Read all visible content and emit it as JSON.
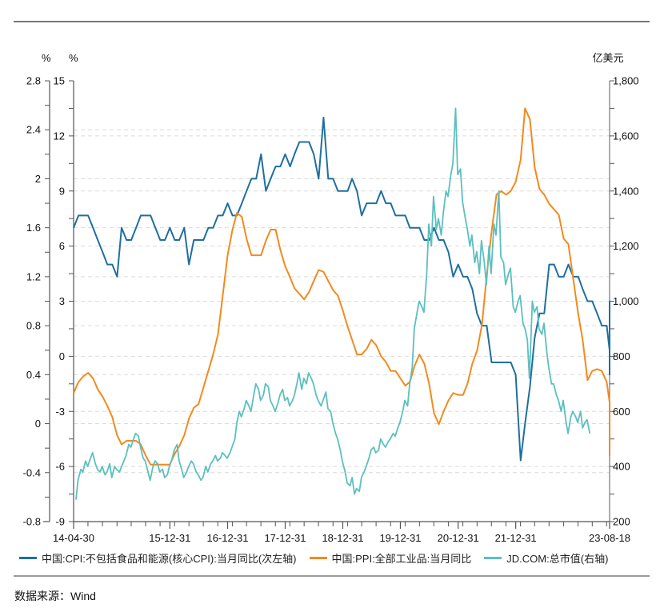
{
  "chart_data": {
    "type": "line",
    "title": "",
    "units": {
      "left_outer": "%",
      "left_inner": "%",
      "right": "亿美元"
    },
    "axes": {
      "left_outer": {
        "min": -0.8,
        "max": 2.8,
        "ticks": [
          "2.8",
          "2.4",
          "2",
          "1.6",
          "1.2",
          "0.8",
          "0.4",
          "0",
          "-0.4",
          "-0.8"
        ],
        "tick_values": [
          2.8,
          2.4,
          2.0,
          1.6,
          1.2,
          0.8,
          0.4,
          0,
          -0.4,
          -0.8
        ]
      },
      "left_inner": {
        "min": -9,
        "max": 15,
        "ticks": [
          "15",
          "12",
          "9",
          "6",
          "3",
          "0",
          "-3",
          "-6",
          "-9"
        ],
        "tick_values": [
          15,
          12,
          9,
          6,
          3,
          0,
          -3,
          -6,
          -9
        ]
      },
      "right": {
        "min": 200,
        "max": 1800,
        "ticks": [
          "1,800",
          "1,600",
          "1,400",
          "1,200",
          "1,000",
          "800",
          "600",
          "400",
          "200"
        ],
        "tick_values": [
          1800,
          1600,
          1400,
          1200,
          1000,
          800,
          600,
          400,
          200
        ]
      }
    },
    "x_range": [
      "2014-04-30",
      "2023-08-18"
    ],
    "x_ticks": [
      {
        "label": "14-04-30",
        "date": "2014-04-30"
      },
      {
        "label": "15-12-31",
        "date": "2015-12-31"
      },
      {
        "label": "16-12-31",
        "date": "2016-12-31"
      },
      {
        "label": "17-12-31",
        "date": "2017-12-31"
      },
      {
        "label": "18-12-31",
        "date": "2018-12-31"
      },
      {
        "label": "19-12-31",
        "date": "2019-12-31"
      },
      {
        "label": "20-12-31",
        "date": "2020-12-31"
      },
      {
        "label": "21-12-31",
        "date": "2021-12-31"
      },
      {
        "label": "23-08-18",
        "date": "2023-08-18"
      }
    ],
    "grid": true,
    "legend_position": "bottom",
    "series": [
      {
        "name": "中国:CPI:不包括食品和能源(核心CPI):当月同比(次左轴)",
        "axis": "left_outer",
        "color": "#1f6f9f",
        "start": "2014-04",
        "step": "month",
        "values": [
          1.6,
          1.7,
          1.7,
          1.7,
          1.6,
          1.5,
          1.4,
          1.3,
          1.3,
          1.2,
          1.6,
          1.5,
          1.5,
          1.6,
          1.7,
          1.7,
          1.7,
          1.6,
          1.5,
          1.5,
          1.6,
          1.5,
          1.5,
          1.6,
          1.3,
          1.5,
          1.5,
          1.5,
          1.6,
          1.6,
          1.7,
          1.7,
          1.8,
          1.7,
          1.7,
          1.8,
          1.9,
          2.0,
          2.0,
          2.2,
          1.9,
          2.0,
          2.1,
          2.1,
          2.2,
          2.1,
          2.2,
          2.3,
          2.3,
          2.3,
          2.2,
          2.0,
          2.5,
          2.0,
          2.0,
          1.9,
          1.9,
          1.9,
          2.0,
          1.9,
          1.7,
          1.8,
          1.8,
          1.8,
          1.9,
          1.8,
          1.8,
          1.7,
          1.7,
          1.7,
          1.6,
          1.6,
          1.6,
          1.5,
          1.5,
          1.6,
          1.5,
          1.5,
          1.4,
          1.2,
          1.3,
          1.2,
          1.2,
          1.1,
          0.9,
          0.8,
          0.8,
          0.5,
          0.5,
          0.5,
          0.5,
          0.5,
          0.4,
          -0.3,
          0.0,
          0.3,
          0.7,
          0.9,
          0.9,
          1.3,
          1.3,
          1.2,
          1.2,
          1.3,
          1.2,
          1.2,
          1.1,
          1.0,
          1.0,
          0.9,
          0.8,
          0.8,
          0.6,
          0.7,
          0.7,
          0.7,
          0.6,
          0.6,
          0.6,
          0.7,
          1.0,
          0.7,
          0.7,
          0.8,
          0.8,
          0.8,
          0.6,
          0.4,
          0.8
        ]
      },
      {
        "name": "中国:PPI:全部工业品:当月同比",
        "axis": "left_inner",
        "color": "#f28a1e",
        "start": "2014-04",
        "step": "month",
        "values": [
          -2.0,
          -1.4,
          -1.1,
          -0.9,
          -1.2,
          -1.8,
          -2.2,
          -2.7,
          -3.3,
          -4.3,
          -4.8,
          -4.6,
          -4.6,
          -4.6,
          -4.8,
          -5.4,
          -5.9,
          -5.9,
          -5.9,
          -5.9,
          -5.9,
          -5.3,
          -4.9,
          -4.3,
          -3.4,
          -2.8,
          -2.6,
          -1.7,
          -0.8,
          0.1,
          1.2,
          3.3,
          5.5,
          6.9,
          7.8,
          7.6,
          6.4,
          5.5,
          5.5,
          5.5,
          6.3,
          6.9,
          6.9,
          5.8,
          4.9,
          4.3,
          3.7,
          3.4,
          3.1,
          3.5,
          4.1,
          4.7,
          4.6,
          4.1,
          3.6,
          3.3,
          2.5,
          1.6,
          0.9,
          0.1,
          0.1,
          0.4,
          0.9,
          0.6,
          0.0,
          -0.3,
          -0.8,
          -0.8,
          -1.2,
          -1.6,
          -1.4,
          -0.5,
          0.1,
          -0.4,
          -1.5,
          -3.1,
          -3.7,
          -3.0,
          -2.4,
          -2.0,
          -2.1,
          -2.1,
          -1.5,
          -0.4,
          0.3,
          1.7,
          4.4,
          6.8,
          8.8,
          9.0,
          8.8,
          9.0,
          9.5,
          10.7,
          13.5,
          12.9,
          10.3,
          9.1,
          8.8,
          8.3,
          8.0,
          7.7,
          6.4,
          6.1,
          4.2,
          2.3,
          0.9,
          -1.3,
          -0.8,
          -0.7,
          -0.8,
          -1.4,
          -2.5,
          -3.6,
          -4.6,
          -5.4,
          -4.4,
          -4.0,
          -3.6
        ]
      },
      {
        "name": "JD.COM:总市值(右轴)",
        "axis": "right",
        "color": "#5dbfbf",
        "start": "2014-05",
        "step": "half-month",
        "values": [
          280,
          350,
          390,
          380,
          420,
          400,
          430,
          450,
          410,
          390,
          380,
          400,
          370,
          380,
          410,
          360,
          400,
          390,
          380,
          400,
          420,
          440,
          480,
          470,
          500,
          520,
          510,
          470,
          430,
          420,
          380,
          350,
          400,
          420,
          410,
          380,
          390,
          360,
          370,
          400,
          430,
          460,
          480,
          420,
          390,
          360,
          380,
          400,
          420,
          410,
          380,
          370,
          350,
          360,
          400,
          380,
          410,
          420,
          440,
          420,
          430,
          450,
          440,
          430,
          450,
          470,
          500,
          560,
          600,
          580,
          610,
          640,
          620,
          600,
          660,
          700,
          680,
          640,
          660,
          700,
          690,
          640,
          620,
          600,
          630,
          660,
          680,
          640,
          650,
          620,
          640,
          660,
          700,
          740,
          680,
          720,
          700,
          740,
          720,
          700,
          660,
          640,
          620,
          640,
          670,
          610,
          600,
          560,
          520,
          500,
          460,
          420,
          380,
          340,
          330,
          360,
          300,
          320,
          310,
          360,
          380,
          400,
          430,
          460,
          470,
          450,
          460,
          500,
          480,
          470,
          490,
          500,
          520,
          510,
          540,
          560,
          600,
          640,
          620,
          700,
          760,
          900,
          960,
          1000,
          980,
          960,
          1100,
          1280,
          1200,
          1380,
          1260,
          1300,
          1240,
          1320,
          1400,
          1380,
          1460,
          1500,
          1700,
          1460,
          1480,
          1360,
          1300,
          1260,
          1200,
          1240,
          1140,
          1180,
          1100,
          1220,
          1140,
          1060,
          1200,
          1100,
          1280,
          1240,
          1400,
          1160,
          1140,
          1060,
          1100,
          1120,
          980,
          960,
          1000,
          1020,
          920,
          900,
          860,
          720,
          1000,
          960,
          980,
          900,
          880,
          920,
          820,
          760,
          700,
          700,
          660,
          640,
          600,
          640,
          560,
          520,
          580,
          600,
          580,
          560,
          600,
          540,
          560,
          570,
          520
        ]
      }
    ],
    "legend": [
      {
        "label": "中国:CPI:不包括食品和能源(核心CPI):当月同比(次左轴)",
        "color": "#1f6f9f"
      },
      {
        "label": "中国:PPI:全部工业品:当月同比",
        "color": "#f28a1e"
      },
      {
        "label": "JD.COM:总市值(右轴)",
        "color": "#5dbfbf"
      }
    ]
  },
  "footer": {
    "source": "数据来源：Wind"
  }
}
